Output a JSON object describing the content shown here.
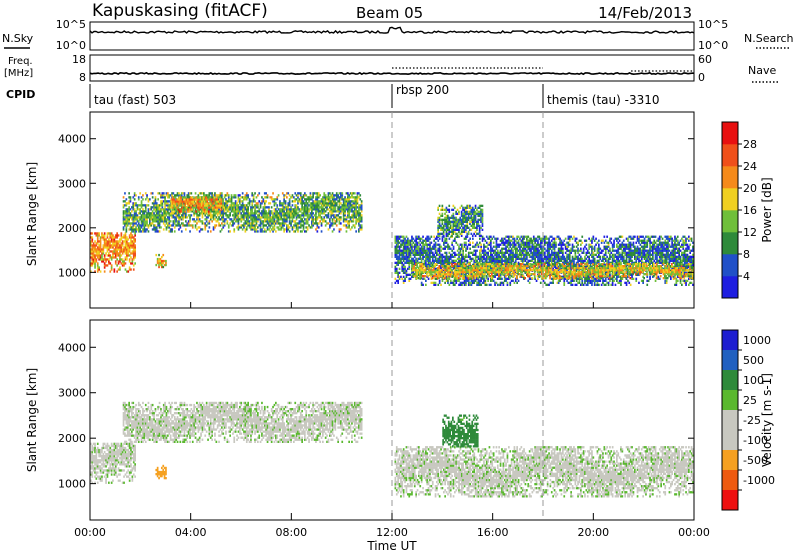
{
  "header": {
    "station": "Kapuskasing (fitACF)",
    "beam": "Beam 05",
    "date": "14/Feb/2013"
  },
  "noise_panel": {
    "left_label": "N.Sky",
    "right_label": "N.Search",
    "left_ticks": [
      "10^5",
      "10^0"
    ],
    "right_ticks": [
      "10^5",
      "10^0"
    ]
  },
  "freq_panel": {
    "left_label_1": "Freq.",
    "left_label_2": "[MHz]",
    "right_label": "Nave",
    "left_ticks": [
      "18",
      "8"
    ],
    "right_ticks": [
      "60",
      "0"
    ]
  },
  "cpid": {
    "label": "CPID",
    "segments": [
      {
        "name": "tau (fast) 503",
        "start_hour": 0
      },
      {
        "name": "rbsp 200",
        "start_hour": 12
      },
      {
        "name": "themis (tau) -3310",
        "start_hour": 18
      }
    ]
  },
  "colors": {
    "power_scale": [
      "#1e1ee0",
      "#2050c8",
      "#2e8a3a",
      "#6fbf3a",
      "#f0d020",
      "#f58a1a",
      "#f0501a",
      "#e81010"
    ],
    "velocity_scale": [
      "#ee1010",
      "#ee5a10",
      "#f5a020",
      "#c8c8c0",
      "#c8c8c0",
      "#5ab82e",
      "#2e8a3a",
      "#2060c0",
      "#1e1ed0"
    ]
  },
  "chart_data": [
    {
      "type": "heatmap",
      "quantity": "power",
      "ylabel": "Slant Range [km]",
      "xlabel": "",
      "xlim": [
        0,
        24
      ],
      "ylim": [
        200,
        4600
      ],
      "yticks": [
        "1000",
        "2000",
        "3000",
        "4000"
      ],
      "colorbar_label": "Power [dB]",
      "colorbar_ticks": [
        "4",
        "8",
        "12",
        "16",
        "20",
        "24",
        "28"
      ],
      "colorbar_range": [
        0,
        32
      ],
      "features": [
        {
          "t_start": 0.0,
          "t_end": 1.8,
          "range_start": 1000,
          "range_end": 1900,
          "value": 22
        },
        {
          "t_start": 2.6,
          "t_end": 3.0,
          "range_start": 1100,
          "range_end": 1400,
          "value": 18
        },
        {
          "t_start": 1.3,
          "t_end": 10.8,
          "range_start": 1900,
          "range_end": 2800,
          "value": 12
        },
        {
          "t_start": 3.2,
          "t_end": 5.2,
          "range_start": 2300,
          "range_end": 2700,
          "value": 20
        },
        {
          "t_start": 12.1,
          "t_end": 24.0,
          "range_start": 700,
          "range_end": 1800,
          "value": 8
        },
        {
          "t_start": 12.8,
          "t_end": 24.0,
          "range_start": 850,
          "range_end": 1200,
          "value": 18
        },
        {
          "t_start": 13.8,
          "t_end": 15.6,
          "range_start": 1800,
          "range_end": 2500,
          "value": 10
        }
      ]
    },
    {
      "type": "heatmap",
      "quantity": "velocity",
      "ylabel": "Slant Range [km]",
      "xlabel": "Time UT",
      "xlim": [
        0,
        24
      ],
      "ylim": [
        200,
        4600
      ],
      "xticks": [
        "00:00",
        "04:00",
        "08:00",
        "12:00",
        "16:00",
        "20:00",
        "00:00"
      ],
      "yticks": [
        "1000",
        "2000",
        "3000",
        "4000"
      ],
      "colorbar_label": "Velocity [m s-1]",
      "colorbar_ticks": [
        "1000",
        "500",
        "100",
        "25",
        "-25",
        "-100",
        "-500",
        "-1000"
      ],
      "features": [
        {
          "t_start": 0.0,
          "t_end": 1.8,
          "range_start": 1000,
          "range_end": 1900,
          "value": 0
        },
        {
          "t_start": 1.3,
          "t_end": 10.8,
          "range_start": 1900,
          "range_end": 2800,
          "value": 0
        },
        {
          "t_start": 2.6,
          "t_end": 3.0,
          "range_start": 1100,
          "range_end": 1400,
          "value": -300
        },
        {
          "t_start": 12.1,
          "t_end": 24.0,
          "range_start": 700,
          "range_end": 1800,
          "value": 0
        },
        {
          "t_start": 14.0,
          "t_end": 15.4,
          "range_start": 1800,
          "range_end": 2500,
          "value": 150
        }
      ]
    }
  ]
}
